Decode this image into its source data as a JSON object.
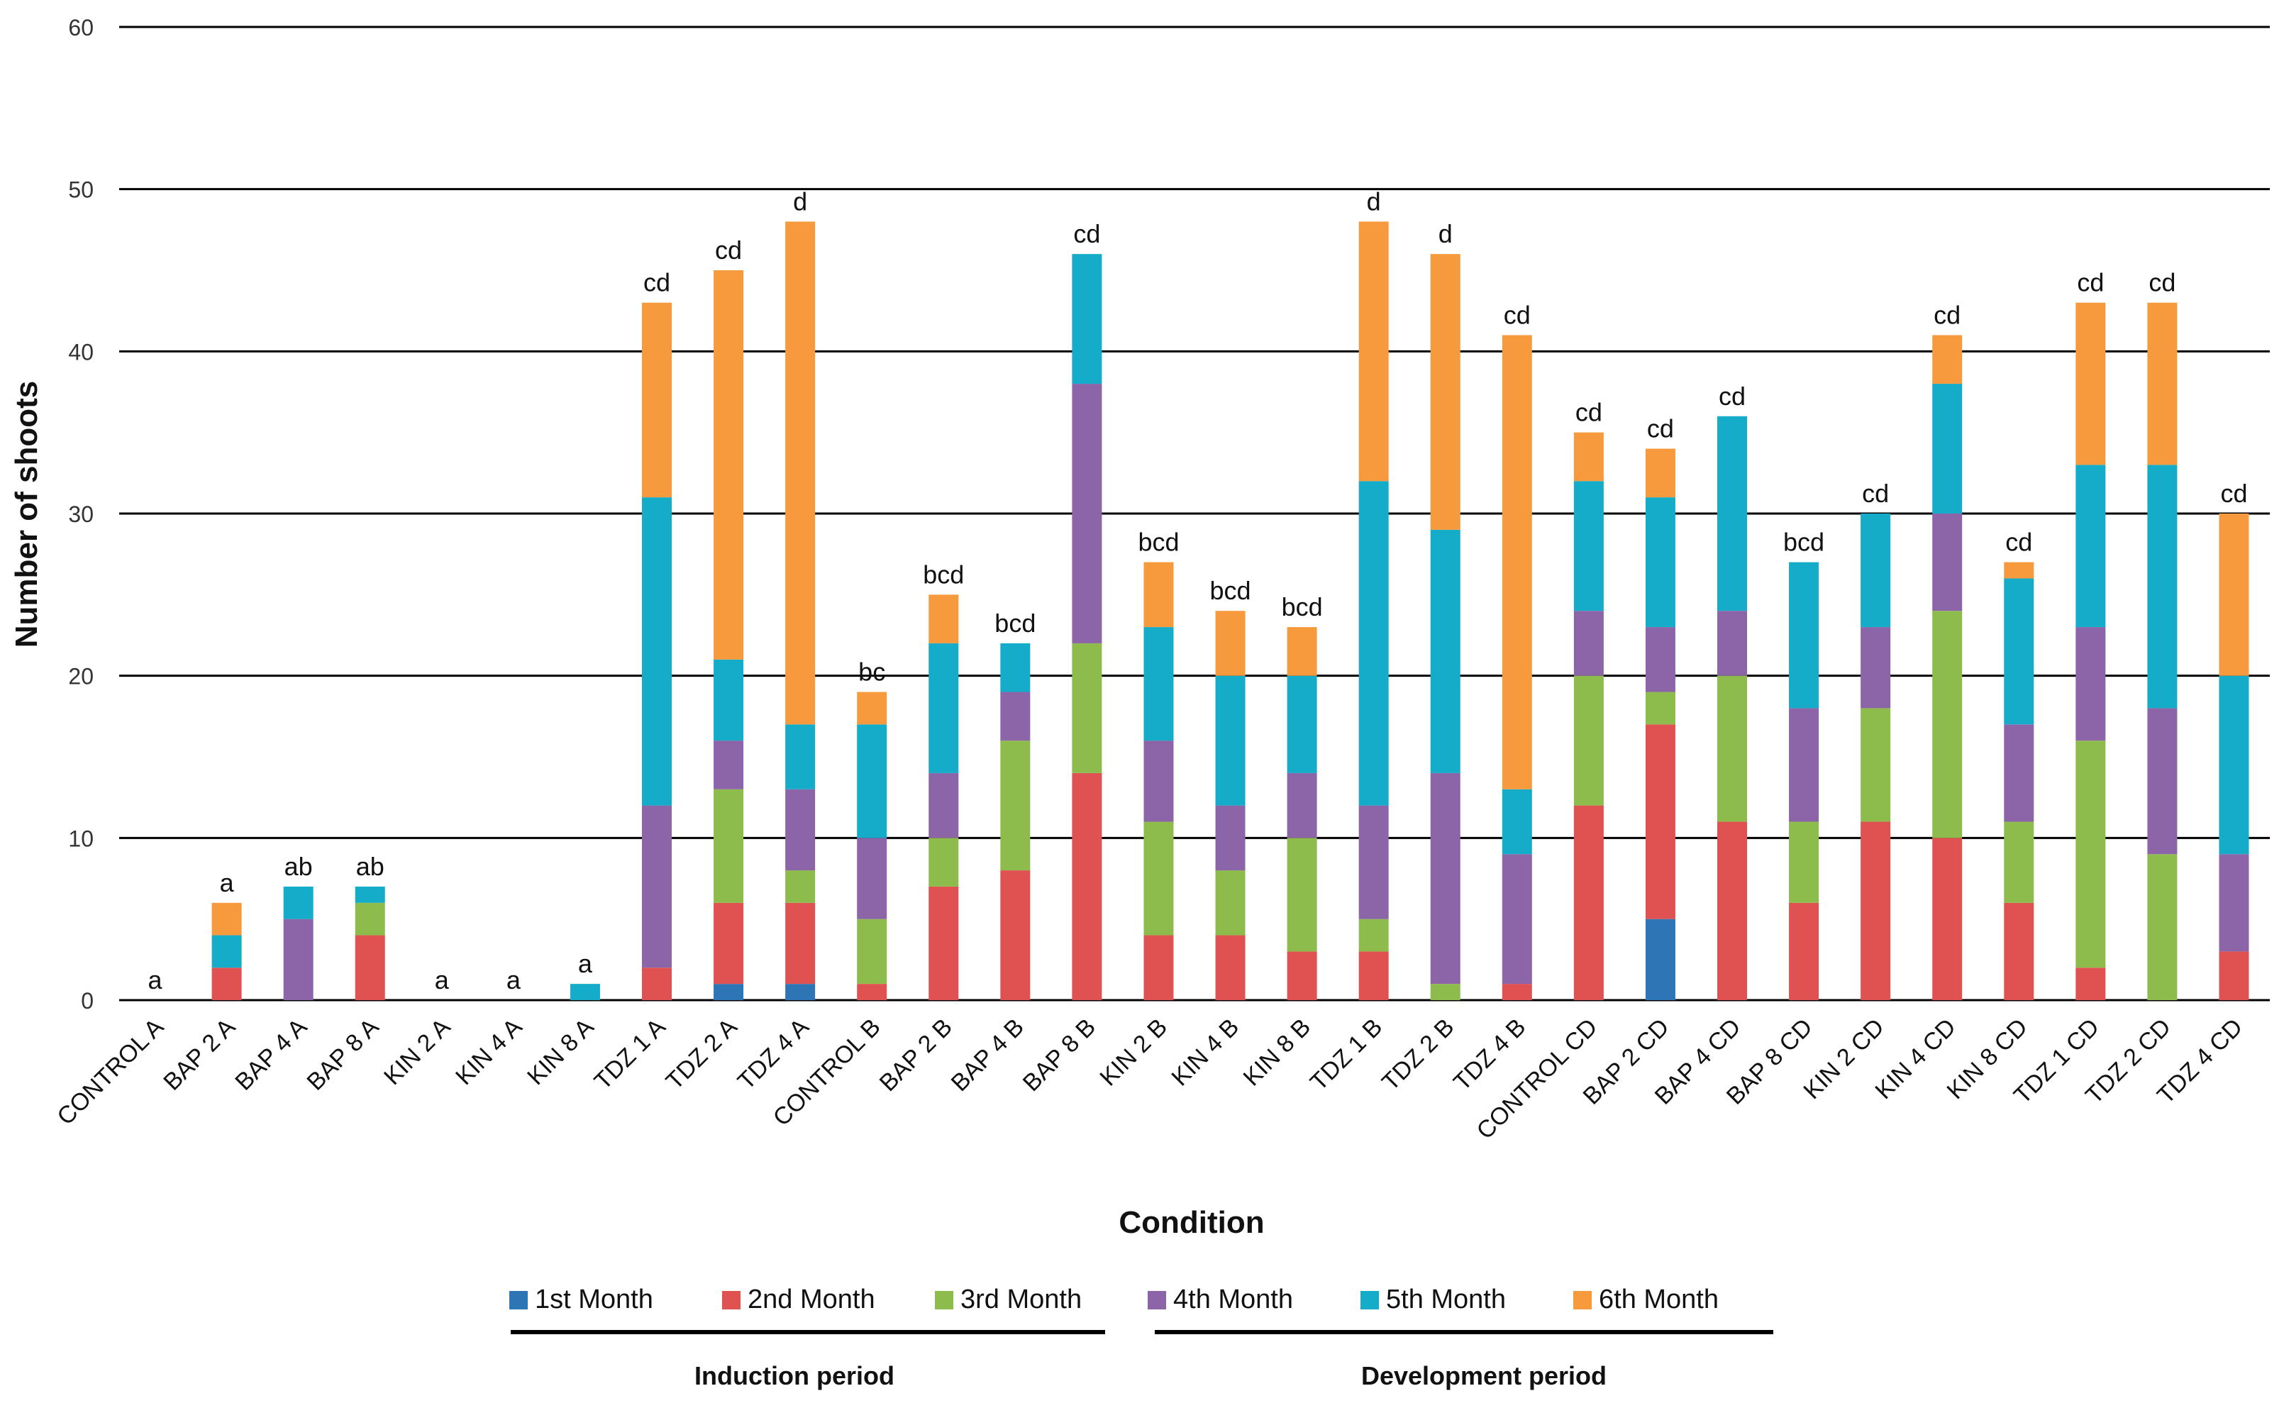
{
  "chart_data": {
    "type": "bar",
    "stacked": true,
    "xlabel": "Condition",
    "ylabel": "Number of shoots",
    "ylim": [
      0,
      60
    ],
    "yticks": [
      0,
      10,
      20,
      30,
      40,
      50,
      60
    ],
    "grid": true,
    "legend_position": "bottom",
    "categories": [
      "CONTROL A",
      "BAP 2 A",
      "BAP 4 A",
      "BAP 8 A",
      "KIN 2 A",
      "KIN 4 A",
      "KIN 8 A",
      "TDZ 1 A",
      "TDZ 2 A",
      "TDZ 4 A",
      "CONTROL B",
      "BAP 2 B",
      "BAP 4 B",
      "BAP 8 B",
      "KIN 2 B",
      "KIN 4 B",
      "KIN 8 B",
      "TDZ 1 B",
      "TDZ 2 B",
      "TDZ 4 B",
      "CONTROL CD",
      "BAP 2 CD",
      "BAP 4 CD",
      "BAP 8 CD",
      "KIN 2 CD",
      "KIN 4 CD",
      "KIN 8 CD",
      "TDZ 1 CD",
      "TDZ 2 CD",
      "TDZ 4 CD"
    ],
    "series": [
      {
        "name": "1st Month",
        "color": "#2E75B6",
        "values": [
          0,
          0,
          0,
          0,
          0,
          0,
          0,
          0,
          1,
          1,
          0,
          0,
          0,
          0,
          0,
          0,
          0,
          0,
          0,
          0,
          0,
          5,
          0,
          0,
          0,
          0,
          0,
          0,
          0,
          0
        ]
      },
      {
        "name": "2nd Month",
        "color": "#E05252",
        "values": [
          0,
          2,
          0,
          4,
          0,
          0,
          0,
          2,
          5,
          5,
          1,
          7,
          8,
          14,
          4,
          4,
          3,
          3,
          0,
          1,
          12,
          12,
          11,
          6,
          11,
          10,
          6,
          2,
          0,
          3
        ]
      },
      {
        "name": "3rd Month",
        "color": "#8DBB4C",
        "values": [
          0,
          0,
          0,
          2,
          0,
          0,
          0,
          0,
          7,
          2,
          4,
          3,
          8,
          8,
          7,
          4,
          7,
          2,
          1,
          0,
          8,
          2,
          9,
          5,
          7,
          14,
          5,
          14,
          9,
          0
        ]
      },
      {
        "name": "4th Month",
        "color": "#8C64A8",
        "values": [
          0,
          0,
          5,
          0,
          0,
          0,
          0,
          10,
          3,
          5,
          5,
          4,
          3,
          16,
          5,
          4,
          4,
          7,
          13,
          8,
          4,
          4,
          4,
          7,
          5,
          6,
          6,
          7,
          9,
          6
        ]
      },
      {
        "name": "5th Month",
        "color": "#14ACC8",
        "values": [
          0,
          2,
          2,
          1,
          0,
          0,
          1,
          19,
          5,
          4,
          7,
          8,
          3,
          8,
          7,
          8,
          6,
          20,
          15,
          4,
          8,
          8,
          12,
          9,
          7,
          8,
          9,
          10,
          15,
          11
        ]
      },
      {
        "name": "6th Month",
        "color": "#F79A3E",
        "values": [
          0,
          2,
          0,
          0,
          0,
          0,
          0,
          12,
          24,
          31,
          2,
          3,
          0,
          0,
          4,
          4,
          3,
          16,
          17,
          28,
          3,
          3,
          0,
          0,
          0,
          3,
          1,
          10,
          10,
          10
        ]
      }
    ],
    "annotations": [
      "a",
      "a",
      "ab",
      "ab",
      "a",
      "a",
      "a",
      "cd",
      "cd",
      "d",
      "bc",
      "bcd",
      "bcd",
      "cd",
      "bcd",
      "bcd",
      "bcd",
      "d",
      "d",
      "cd",
      "cd",
      "cd",
      "cd",
      "bcd",
      "cd",
      "cd",
      "cd",
      "cd",
      "cd",
      "cd"
    ],
    "periods": [
      {
        "label": "Induction period"
      },
      {
        "label": "Development period"
      }
    ]
  }
}
